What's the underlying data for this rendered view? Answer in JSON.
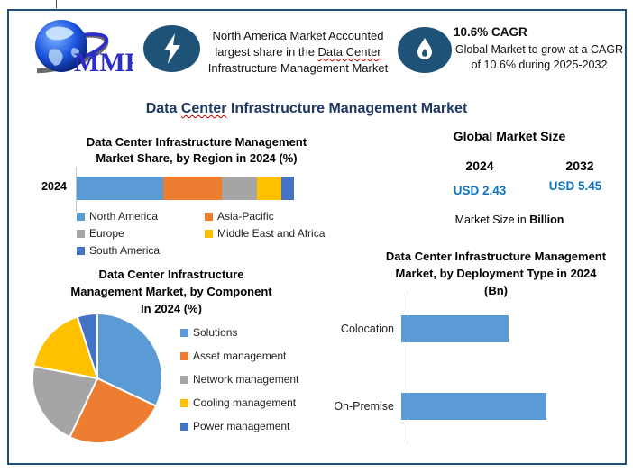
{
  "header": {
    "logo": {
      "text": "MMR"
    },
    "callout_region": {
      "icon": "lightning-icon",
      "pre": "North America Market Accounted largest share in the ",
      "underlined": "Data Center",
      "post": " Infrastructure Management Market"
    },
    "callout_cagr": {
      "icon": "flame-icon",
      "title": "10.6% CAGR",
      "body": "Global Market to grow at a CAGR of 10.6% during 2025-2032"
    }
  },
  "main_title": {
    "pre": "Data ",
    "underlined": "Center",
    "post": " Infrastructure Management Market"
  },
  "global_market_size": {
    "heading": "Global Market Size",
    "year_left": "2024",
    "year_right": "2032",
    "value_left": "USD 2.43",
    "value_right": "USD 5.45",
    "caption_normal": "Market Size in ",
    "caption_bold": "Billion"
  },
  "colors": {
    "frame_border": "#1F4E79",
    "title_navy": "#1F3864",
    "usd_blue": "#0F75BC",
    "icon_circle": "#1E5377",
    "series_blue": "#5B9BD5",
    "series_orange": "#ED7D31",
    "series_gray": "#A5A5A5",
    "series_yellow": "#FFC000",
    "series_darkblue": "#4472C4"
  },
  "chart_data": [
    {
      "type": "bar",
      "subtype": "stacked-horizontal",
      "title": "Data Center Infrastructure Management Market Share, by Region in 2024 (%)",
      "title_lines": [
        "Data Center Infrastructure Management",
        "Market Share, by Region in 2024 (%)"
      ],
      "categories": [
        "2024"
      ],
      "unit": "%",
      "legend_position": "bottom",
      "values_estimated_from_pixels": true,
      "series": [
        {
          "name": "North America",
          "color": "#5B9BD5",
          "values": [
            40
          ]
        },
        {
          "name": "Asia-Pacific",
          "color": "#ED7D31",
          "values": [
            27
          ]
        },
        {
          "name": "Europe",
          "color": "#A5A5A5",
          "values": [
            16
          ]
        },
        {
          "name": "Middle East and Africa",
          "color": "#FFC000",
          "values": [
            11
          ]
        },
        {
          "name": "South America",
          "color": "#4472C4",
          "values": [
            6
          ]
        }
      ]
    },
    {
      "type": "pie",
      "title": "Data Center Infrastructure Management Market, by Component In 2024 (%)",
      "title_lines": [
        "Data Center Infrastructure",
        "Management Market, by Component",
        "In 2024 (%)"
      ],
      "labels": [
        "Solutions",
        "Asset management",
        "Network management",
        "Cooling management",
        "Power management"
      ],
      "values": [
        32,
        25,
        21,
        17,
        5
      ],
      "colors": [
        "#5B9BD5",
        "#ED7D31",
        "#A5A5A5",
        "#FFC000",
        "#4472C4"
      ],
      "legend_position": "right",
      "start_angle_deg": -90,
      "direction": "clockwise",
      "values_estimated_from_pixels": true
    },
    {
      "type": "bar",
      "subtype": "horizontal",
      "title": "Data Center Infrastructure Management Market, by Deployment Type in 2024 (Bn)",
      "title_lines": [
        "Data Center Infrastructure Management",
        "Market, by Deployment Type in 2024",
        "(Bn)"
      ],
      "categories": [
        "Colocation",
        "On-Premise"
      ],
      "values": [
        1.0,
        1.35
      ],
      "unit": "Bn",
      "bar_color": "#5B9BD5",
      "grid": false,
      "value_axis_visible": false,
      "values_estimated_from_pixels": true
    }
  ]
}
